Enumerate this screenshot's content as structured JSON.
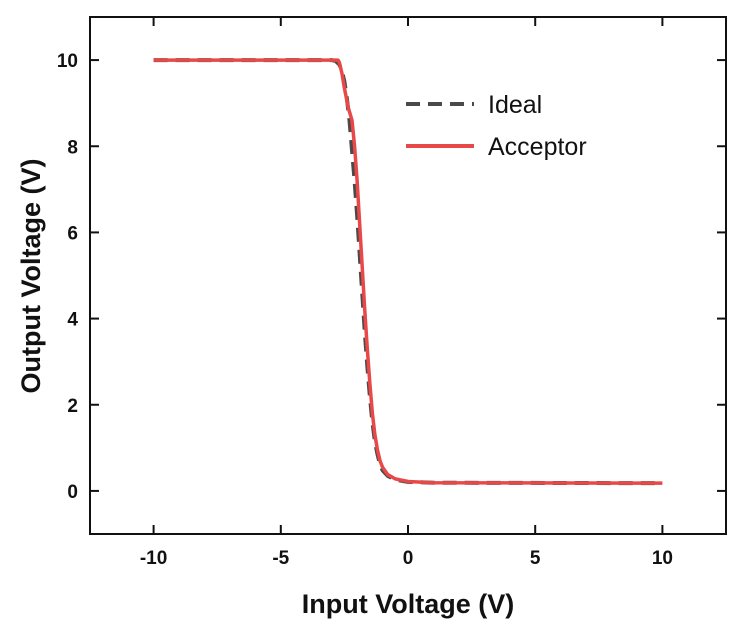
{
  "chart_data": {
    "type": "line",
    "title": "",
    "xlabel": "Input Voltage (V)",
    "ylabel": "Output Voltage (V)",
    "xlim": [
      -12.5,
      12.5
    ],
    "ylim": [
      -1,
      11
    ],
    "xticks": [
      -10,
      -5,
      0,
      5,
      10
    ],
    "yticks": [
      0,
      2,
      4,
      6,
      8,
      10
    ],
    "xtick_labels": [
      "-10",
      "-5",
      "0",
      "5",
      "10"
    ],
    "ytick_labels": [
      "0",
      "2",
      "4",
      "6",
      "8",
      "10"
    ],
    "grid": false,
    "legend_position": "top-right",
    "series": [
      {
        "name": "Ideal",
        "style": "dashed",
        "color": "#4a4a4a",
        "points": [
          [
            -10,
            10.0
          ],
          [
            -3.0,
            10.0
          ],
          [
            -2.85,
            9.98
          ],
          [
            -2.7,
            9.9
          ],
          [
            -2.6,
            9.75
          ],
          [
            -2.5,
            9.5
          ],
          [
            -2.4,
            9.1
          ],
          [
            -2.3,
            8.6
          ],
          [
            -2.2,
            7.9
          ],
          [
            -2.1,
            7.2
          ],
          [
            -2.0,
            6.4
          ],
          [
            -1.9,
            5.5
          ],
          [
            -1.8,
            4.6
          ],
          [
            -1.7,
            3.7
          ],
          [
            -1.6,
            2.9
          ],
          [
            -1.5,
            2.2
          ],
          [
            -1.4,
            1.6
          ],
          [
            -1.3,
            1.15
          ],
          [
            -1.2,
            0.85
          ],
          [
            -1.1,
            0.62
          ],
          [
            -1.0,
            0.48
          ],
          [
            -0.8,
            0.35
          ],
          [
            -0.5,
            0.26
          ],
          [
            0.0,
            0.21
          ],
          [
            1.0,
            0.19
          ],
          [
            10,
            0.18
          ]
        ]
      },
      {
        "name": "Acceptor",
        "style": "solid",
        "color": "#e84848",
        "points": [
          [
            -10,
            10.0
          ],
          [
            -2.75,
            10.0
          ],
          [
            -2.7,
            9.95
          ],
          [
            -2.6,
            9.7
          ],
          [
            -2.5,
            9.35
          ],
          [
            -2.35,
            8.9
          ],
          [
            -2.2,
            8.6
          ],
          [
            -2.1,
            8.0
          ],
          [
            -2.0,
            7.2
          ],
          [
            -1.9,
            6.2
          ],
          [
            -1.8,
            5.2
          ],
          [
            -1.7,
            4.2
          ],
          [
            -1.6,
            3.3
          ],
          [
            -1.5,
            2.5
          ],
          [
            -1.4,
            1.8
          ],
          [
            -1.3,
            1.3
          ],
          [
            -1.2,
            0.95
          ],
          [
            -1.1,
            0.7
          ],
          [
            -1.0,
            0.55
          ],
          [
            -0.8,
            0.38
          ],
          [
            -0.5,
            0.28
          ],
          [
            0.0,
            0.22
          ],
          [
            1.0,
            0.19
          ],
          [
            10,
            0.18
          ]
        ]
      }
    ]
  }
}
